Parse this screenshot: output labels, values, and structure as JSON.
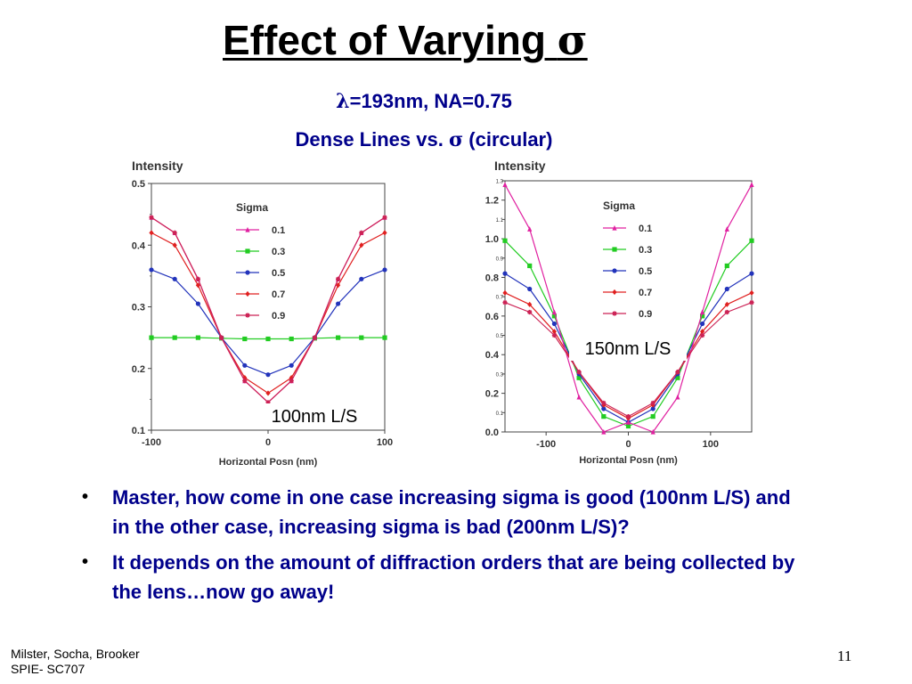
{
  "slide": {
    "title": "Effect of Varying ",
    "title_symbol": "σ",
    "subtitle1_symbol": "λ",
    "subtitle1_rest": "=193nm, NA=0.75",
    "subtitle2_pre": "Dense Lines vs. ",
    "subtitle2_symbol": "σ",
    "subtitle2_post": " (circular)",
    "bullets": [
      "Master, how come in one case increasing sigma is good (100nm L/S) and in the other case, increasing sigma is bad (200nm L/S)?",
      "It depends on the amount of diffraction orders that are being collected by the lens…now go away!"
    ],
    "bullet_glyph": "•",
    "footer_line1": "Milster, Socha, Brooker",
    "footer_line2": "SPIE- SC707",
    "page_number": "11"
  },
  "chart_data": [
    {
      "type": "line",
      "annotation": "100nm L/S",
      "ylabel": "Intensity",
      "xlabel": "Horizontal Posn (nm)",
      "xlim": [
        -100,
        100
      ],
      "ylim": [
        0.1,
        0.5
      ],
      "x_ticks": [
        -100,
        0,
        100
      ],
      "x_tick_labels": [
        "-100",
        "0",
        "100"
      ],
      "y_ticks": [
        0.1,
        0.2,
        0.3,
        0.4,
        0.5
      ],
      "y_tick_labels": [
        "0.1",
        "0.2",
        "0.3",
        "0.4",
        "0.5"
      ],
      "grid": false,
      "legend_title": "Sigma",
      "legend_position": "top-right",
      "x": [
        -100,
        -80,
        -60,
        -40,
        -20,
        0,
        20,
        40,
        60,
        80,
        100
      ],
      "series": [
        {
          "name": "0.1",
          "color": "#e020a0",
          "marker": "triangle",
          "values": [
            0.445,
            0.42,
            0.345,
            0.25,
            0.18,
            0.145,
            0.18,
            0.25,
            0.345,
            0.42,
            0.445
          ]
        },
        {
          "name": "0.3",
          "color": "#22cc22",
          "marker": "square",
          "values": [
            0.25,
            0.25,
            0.25,
            0.249,
            0.248,
            0.248,
            0.248,
            0.249,
            0.25,
            0.25,
            0.25
          ]
        },
        {
          "name": "0.5",
          "color": "#2233bb",
          "marker": "circle",
          "values": [
            0.36,
            0.345,
            0.305,
            0.25,
            0.205,
            0.19,
            0.205,
            0.25,
            0.305,
            0.345,
            0.36
          ]
        },
        {
          "name": "0.7",
          "color": "#e02020",
          "marker": "diamond",
          "values": [
            0.42,
            0.4,
            0.335,
            0.25,
            0.185,
            0.16,
            0.185,
            0.25,
            0.335,
            0.4,
            0.42
          ]
        },
        {
          "name": "0.9",
          "color": "#cc2255",
          "marker": "star",
          "values": [
            0.445,
            0.42,
            0.345,
            0.25,
            0.18,
            0.145,
            0.18,
            0.25,
            0.345,
            0.42,
            0.445
          ]
        }
      ]
    },
    {
      "type": "line",
      "annotation": "150nm L/S",
      "ylabel": "Intensity",
      "xlabel": "Horizontal Posn (nm)",
      "xlim": [
        -150,
        150
      ],
      "ylim": [
        0.0,
        1.3
      ],
      "x_ticks": [
        -100,
        0,
        100
      ],
      "x_tick_labels": [
        "-100",
        "0",
        "100"
      ],
      "y_ticks": [
        0.0,
        0.2,
        0.4,
        0.6,
        0.8,
        1.0,
        1.2
      ],
      "y_tick_labels": [
        "0.0",
        "0.2",
        "0.4",
        "0.6",
        "0.8",
        "1.0",
        "1.2"
      ],
      "y_minor_ticks": [
        0.1,
        0.3,
        0.5,
        0.7,
        0.9,
        1.1,
        1.3
      ],
      "y_minor_labels": [
        "0.1",
        "0.3",
        "0.5",
        "0.7",
        "0.9",
        "1.1",
        "1.3"
      ],
      "grid": false,
      "legend_title": "Sigma",
      "legend_position": "top-right",
      "x": [
        -150,
        -120,
        -90,
        -60,
        -30,
        0,
        30,
        60,
        90,
        120,
        150
      ],
      "series": [
        {
          "name": "0.1",
          "color": "#e020a0",
          "marker": "triangle",
          "values": [
            1.28,
            1.05,
            0.62,
            0.18,
            0.0,
            0.05,
            0.0,
            0.18,
            0.62,
            1.05,
            1.28
          ]
        },
        {
          "name": "0.3",
          "color": "#22cc22",
          "marker": "square",
          "values": [
            0.99,
            0.86,
            0.6,
            0.28,
            0.08,
            0.03,
            0.08,
            0.28,
            0.6,
            0.86,
            0.99
          ]
        },
        {
          "name": "0.5",
          "color": "#2233bb",
          "marker": "circle",
          "values": [
            0.82,
            0.74,
            0.56,
            0.3,
            0.12,
            0.05,
            0.12,
            0.3,
            0.56,
            0.74,
            0.82
          ]
        },
        {
          "name": "0.7",
          "color": "#e02020",
          "marker": "diamond",
          "values": [
            0.72,
            0.66,
            0.52,
            0.31,
            0.14,
            0.07,
            0.14,
            0.31,
            0.52,
            0.66,
            0.72
          ]
        },
        {
          "name": "0.9",
          "color": "#cc2255",
          "marker": "star",
          "values": [
            0.67,
            0.62,
            0.5,
            0.31,
            0.15,
            0.08,
            0.15,
            0.31,
            0.5,
            0.62,
            0.67
          ]
        }
      ]
    }
  ]
}
